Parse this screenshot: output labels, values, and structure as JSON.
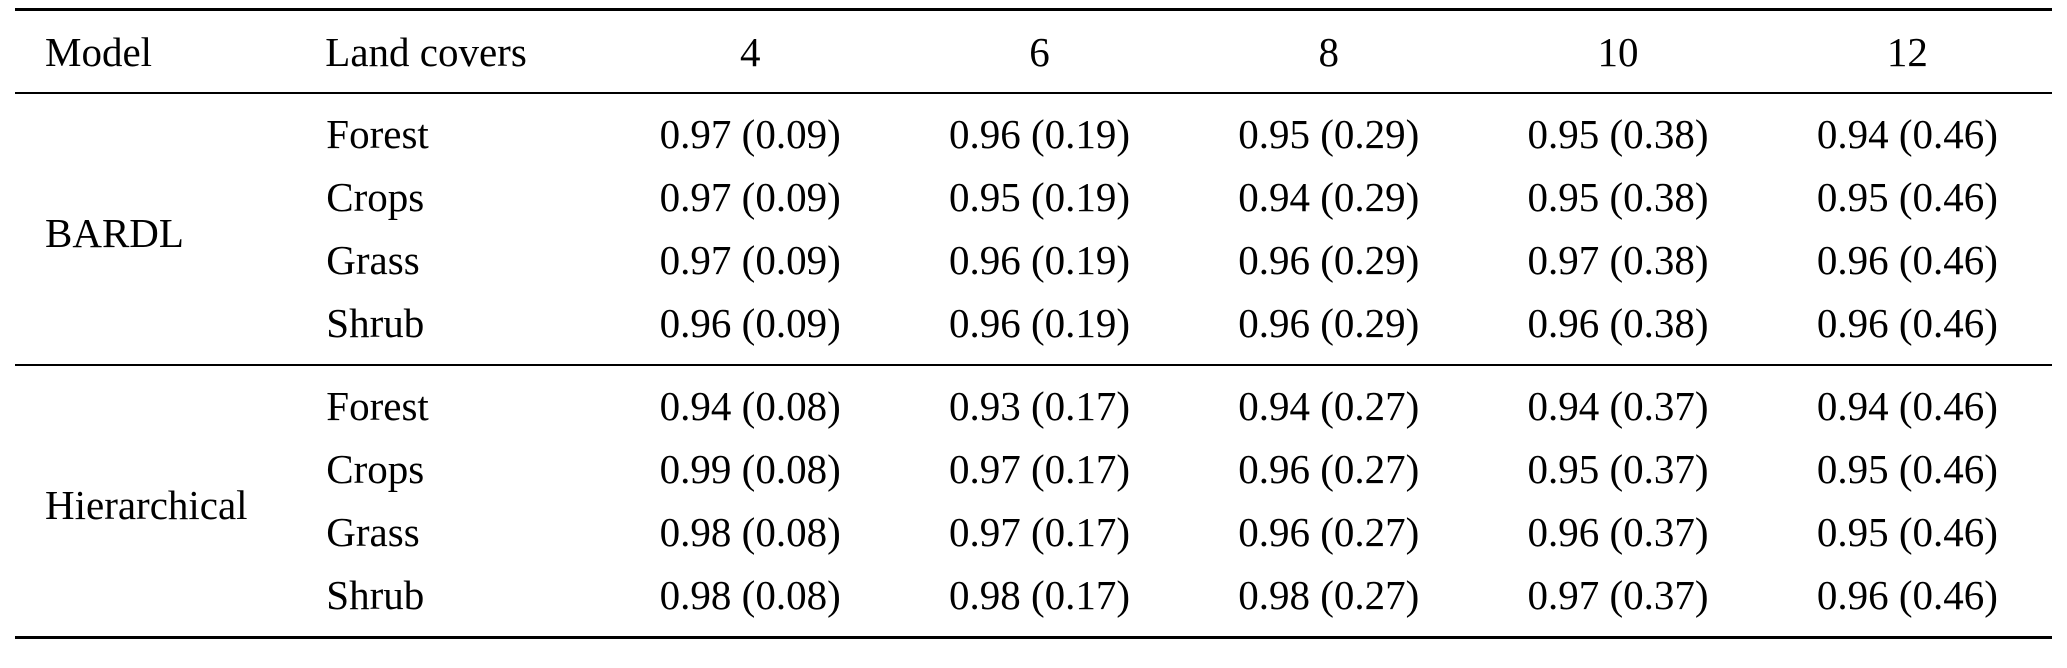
{
  "table": {
    "columns": [
      "Model",
      "Land covers",
      "4",
      "6",
      "8",
      "10",
      "12"
    ],
    "groups": [
      {
        "model": "BARDL",
        "rows": [
          {
            "land_cover": "Forest",
            "values": [
              "0.97 (0.09)",
              "0.96 (0.19)",
              "0.95 (0.29)",
              "0.95 (0.38)",
              "0.94 (0.46)"
            ]
          },
          {
            "land_cover": "Crops",
            "values": [
              "0.97 (0.09)",
              "0.95 (0.19)",
              "0.94 (0.29)",
              "0.95 (0.38)",
              "0.95 (0.46)"
            ]
          },
          {
            "land_cover": "Grass",
            "values": [
              "0.97 (0.09)",
              "0.96 (0.19)",
              "0.96 (0.29)",
              "0.97 (0.38)",
              "0.96 (0.46)"
            ]
          },
          {
            "land_cover": "Shrub",
            "values": [
              "0.96 (0.09)",
              "0.96 (0.19)",
              "0.96 (0.29)",
              "0.96 (0.38)",
              "0.96 (0.46)"
            ]
          }
        ]
      },
      {
        "model": "Hierarchical",
        "rows": [
          {
            "land_cover": "Forest",
            "values": [
              "0.94 (0.08)",
              "0.93 (0.17)",
              "0.94 (0.27)",
              "0.94 (0.37)",
              "0.94 (0.46)"
            ]
          },
          {
            "land_cover": "Crops",
            "values": [
              "0.99 (0.08)",
              "0.97 (0.17)",
              "0.96 (0.27)",
              "0.95 (0.37)",
              "0.95 (0.46)"
            ]
          },
          {
            "land_cover": "Grass",
            "values": [
              "0.98 (0.08)",
              "0.97 (0.17)",
              "0.96 (0.27)",
              "0.96 (0.37)",
              "0.95 (0.46)"
            ]
          },
          {
            "land_cover": "Shrub",
            "values": [
              "0.98 (0.08)",
              "0.98 (0.17)",
              "0.98 (0.27)",
              "0.97 (0.37)",
              "0.96 (0.46)"
            ]
          }
        ]
      }
    ]
  }
}
